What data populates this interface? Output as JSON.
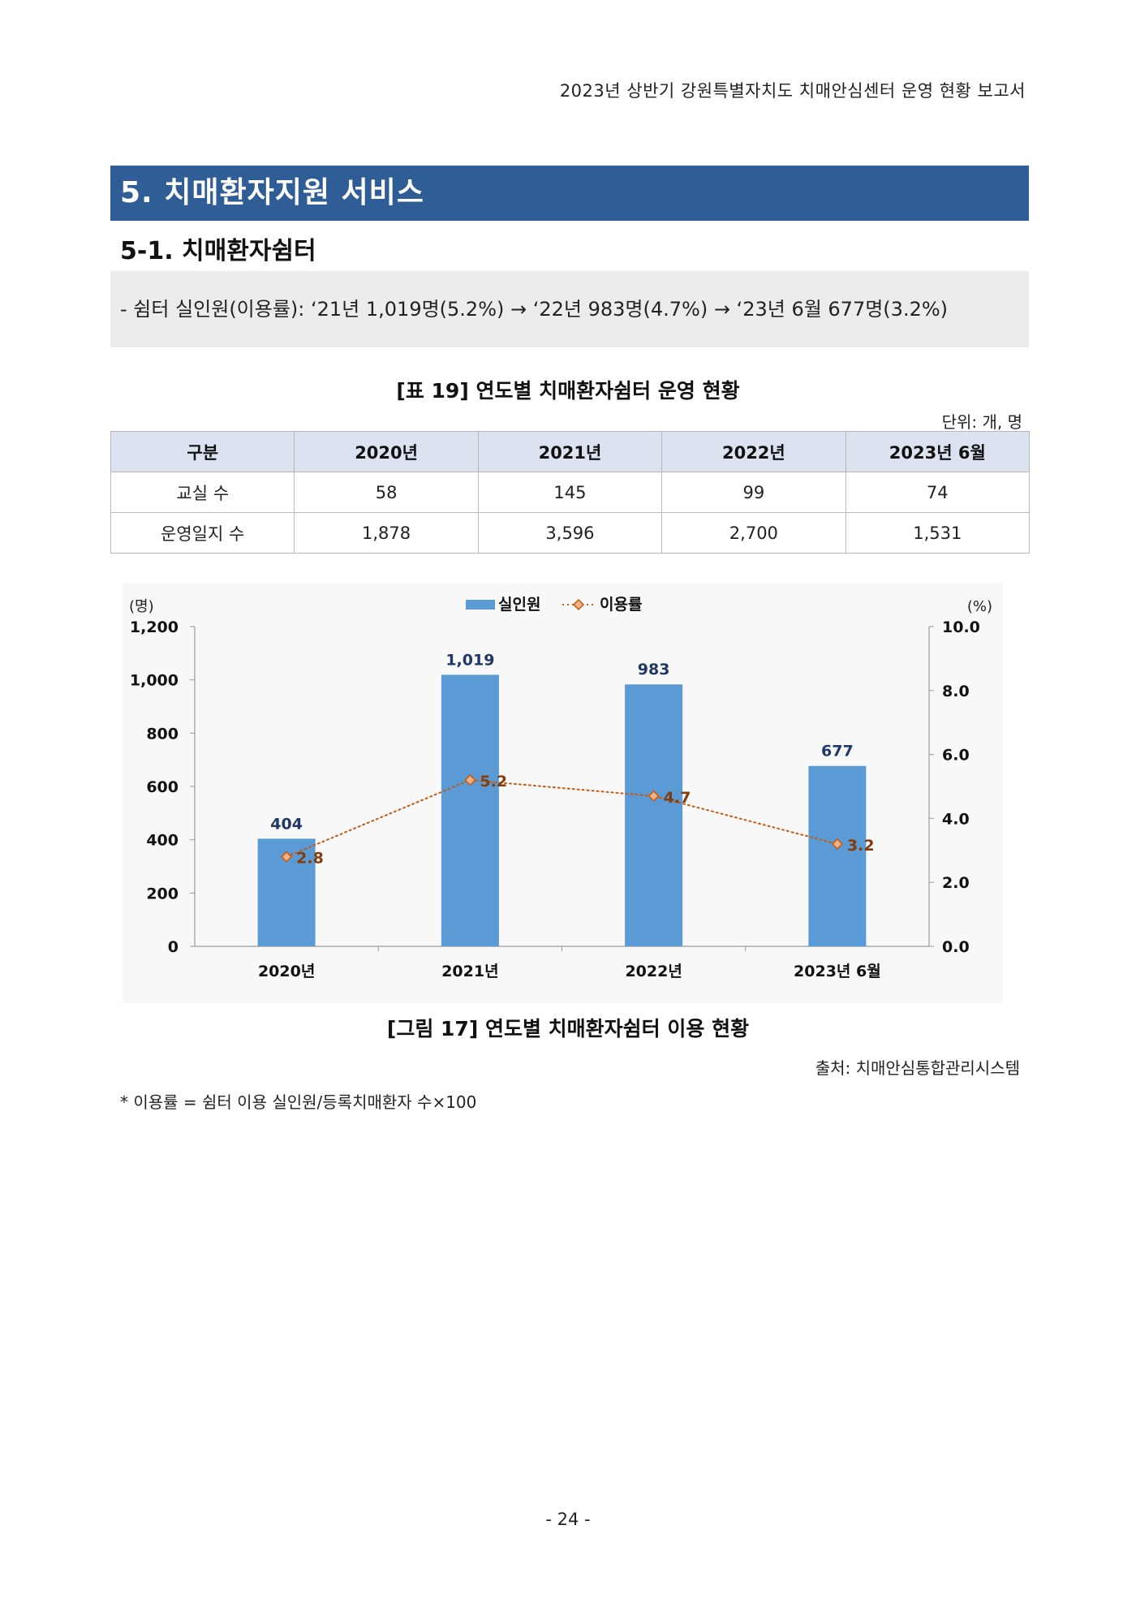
{
  "header": {
    "running_title": "2023년 상반기 강원특별자치도 치매안심센터 운영 현황 보고서"
  },
  "section": {
    "title": "5. 치매환자지원 서비스"
  },
  "subsection": {
    "title": "5-1. 치매환자쉼터"
  },
  "summary": {
    "text": "- 쉼터 실인원(이용률): ‘21년 1,019명(5.2%) → ‘22년 983명(4.7%) → ‘23년 6월 677명(3.2%)"
  },
  "table": {
    "caption": "[표 19] 연도별 치매환자쉼터 운영 현황",
    "unit": "단위: 개, 명",
    "headers": [
      "구분",
      "2020년",
      "2021년",
      "2022년",
      "2023년 6월"
    ],
    "rows": [
      [
        "교실 수",
        "58",
        "145",
        "99",
        "74"
      ],
      [
        "운영일지 수",
        "1,878",
        "3,596",
        "2,700",
        "1,531"
      ]
    ]
  },
  "figure": {
    "caption": "[그림 17] 연도별 치매환자쉼터 이용 현황",
    "source": "출처: 치매안심통합관리시스템",
    "footnote": "* 이용률 = 쉼터 이용 실인원/등록치매환자 수×100"
  },
  "page": {
    "number": "- 24 -"
  },
  "chart_data": {
    "type": "bar",
    "title": "",
    "categories": [
      "2020년",
      "2021년",
      "2022년",
      "2023년 6월"
    ],
    "series": [
      {
        "name": "실인원",
        "type": "bar",
        "axis": "left",
        "values": [
          404,
          1019,
          983,
          677
        ],
        "labels": [
          "404",
          "1,019",
          "983",
          "677"
        ],
        "color": "#5b9bd5"
      },
      {
        "name": "이용률",
        "type": "line",
        "axis": "right",
        "values": [
          2.8,
          5.2,
          4.7,
          3.2
        ],
        "labels": [
          "2.8",
          "5.2",
          "4.7",
          "3.2"
        ],
        "color": "#c55a11",
        "line_style": "dotted",
        "marker": "diamond"
      }
    ],
    "y_left": {
      "unit_label": "(명)",
      "range": [
        0,
        1200
      ],
      "ticks": [
        "0",
        "200",
        "400",
        "600",
        "800",
        "1,000",
        "1,200"
      ]
    },
    "y_right": {
      "unit_label": "(%)",
      "range": [
        0,
        10
      ],
      "ticks": [
        "0.0",
        "2.0",
        "4.0",
        "6.0",
        "8.0",
        "10.0"
      ]
    },
    "legend_position": "top-center",
    "grid": false,
    "bar_label_color": "#1f3864",
    "line_label_color": "#843c0c"
  }
}
